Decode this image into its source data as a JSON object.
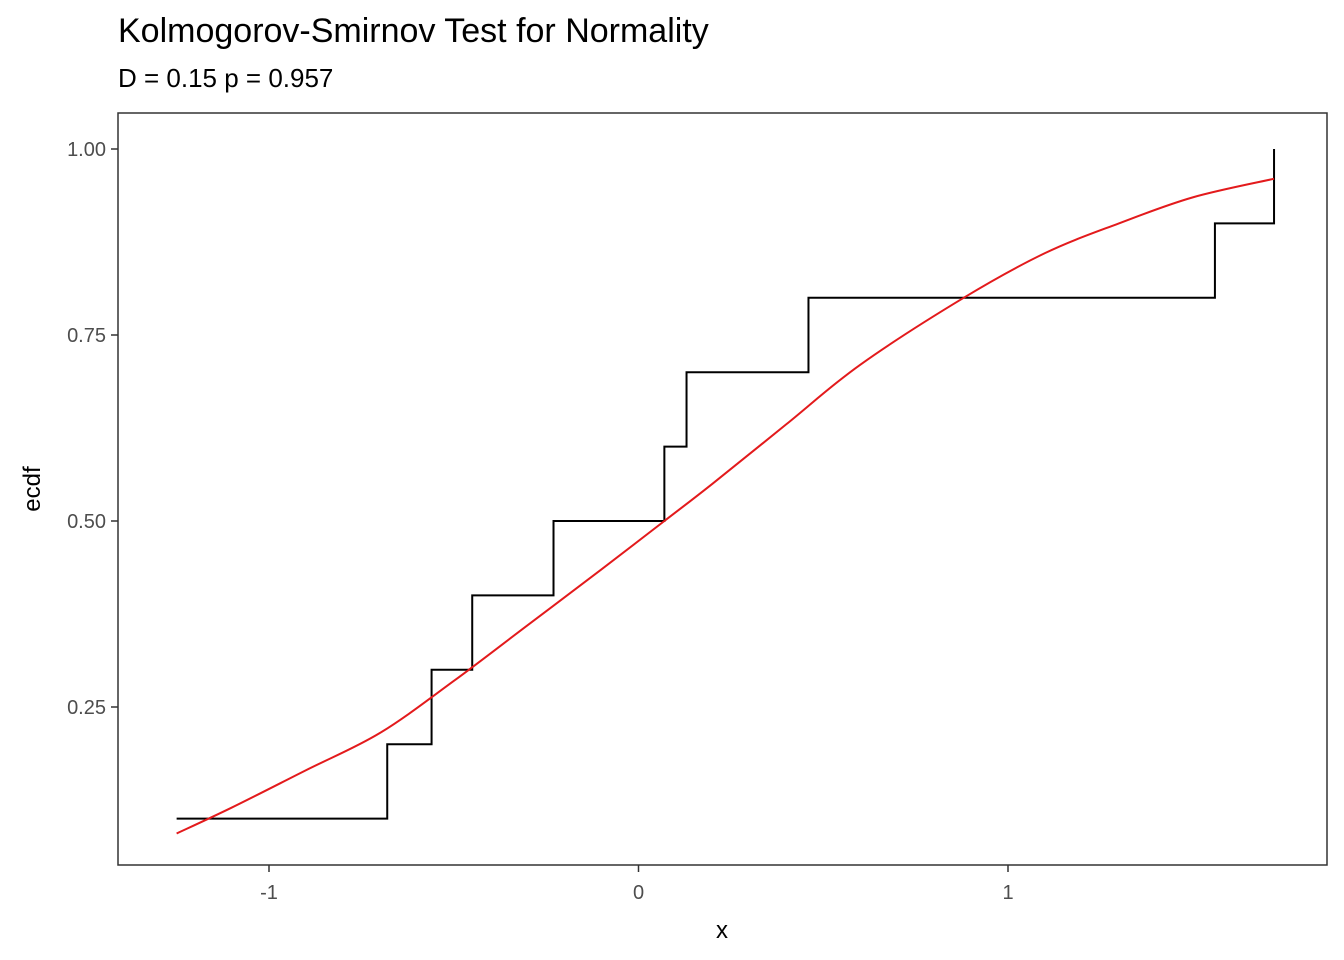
{
  "chart_data": {
    "type": "line",
    "title": "Kolmogorov-Smirnov Test for Normality",
    "subtitle": "D = 0.15 p = 0.957",
    "xlabel": "x",
    "ylabel": "ecdf",
    "xlim": [
      -1.4,
      1.9
    ],
    "ylim": [
      0.05,
      1.04
    ],
    "x_ticks": [
      -1,
      0,
      1
    ],
    "x_tick_labels": [
      "-1",
      "0",
      "1"
    ],
    "y_ticks": [
      0.25,
      0.5,
      0.75,
      1.0
    ],
    "y_tick_labels": [
      "0.25",
      "0.50",
      "0.75",
      "1.00"
    ],
    "grid": false,
    "series": [
      {
        "kind": "step",
        "color": "#000000",
        "x": [
          -1.25,
          -0.68,
          -0.56,
          -0.45,
          -0.23,
          0.07,
          0.13,
          0.46,
          1.56,
          1.72
        ],
        "y": [
          0.1,
          0.2,
          0.3,
          0.4,
          0.5,
          0.6,
          0.7,
          0.8,
          0.9,
          1.0
        ]
      },
      {
        "kind": "curve",
        "color": "#e31a1c",
        "x": [
          -1.25,
          -1.1,
          -0.9,
          -0.7,
          -0.5,
          -0.3,
          -0.1,
          0.07,
          0.2,
          0.4,
          0.6,
          0.88,
          1.1,
          1.3,
          1.5,
          1.72
        ],
        "y": [
          0.08,
          0.115,
          0.165,
          0.215,
          0.285,
          0.36,
          0.435,
          0.5,
          0.55,
          0.63,
          0.71,
          0.8,
          0.86,
          0.9,
          0.935,
          0.96
        ]
      }
    ]
  }
}
